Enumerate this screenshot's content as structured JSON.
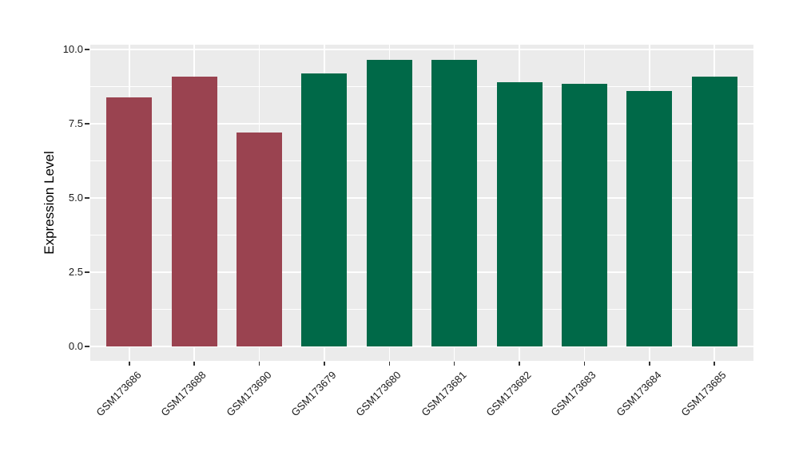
{
  "figure": {
    "background": "#FFFFFF",
    "panel_background": "#EBEBEB",
    "gridline_color": "#FFFFFF",
    "tick_color": "#333333",
    "text_color": "#1A1A1A"
  },
  "chart_data": {
    "type": "bar",
    "title": "",
    "xlabel": "",
    "ylabel": "Expression Level",
    "categories": [
      "GSM173686",
      "GSM173688",
      "GSM173690",
      "GSM173679",
      "GSM173680",
      "GSM173681",
      "GSM173682",
      "GSM173683",
      "GSM173684",
      "GSM173685"
    ],
    "values": [
      8.4,
      9.1,
      7.2,
      9.2,
      9.65,
      9.65,
      8.9,
      8.85,
      8.6,
      9.1
    ],
    "bar_colors": [
      "#9A4350",
      "#9A4350",
      "#9A4350",
      "#006948",
      "#006948",
      "#006948",
      "#006948",
      "#006948",
      "#006948",
      "#006948"
    ],
    "color_groups": [
      {
        "color": "#9A4350",
        "members": [
          "GSM173686",
          "GSM173688",
          "GSM173690"
        ]
      },
      {
        "color": "#006948",
        "members": [
          "GSM173679",
          "GSM173680",
          "GSM173681",
          "GSM173682",
          "GSM173683",
          "GSM173684",
          "GSM173685"
        ]
      }
    ],
    "ylim": [
      0,
      10
    ],
    "yticks": [
      0,
      2.5,
      5,
      7.5,
      10
    ],
    "ytick_labels": [
      "0.0",
      "2.5",
      "5.0",
      "7.5",
      "10.0"
    ],
    "minor_yticks": [
      1.25,
      3.75,
      6.25,
      8.75
    ],
    "grid": true,
    "legend_position": "none",
    "x_label_rotation_deg": 45,
    "bar_relative_width": 0.7
  }
}
